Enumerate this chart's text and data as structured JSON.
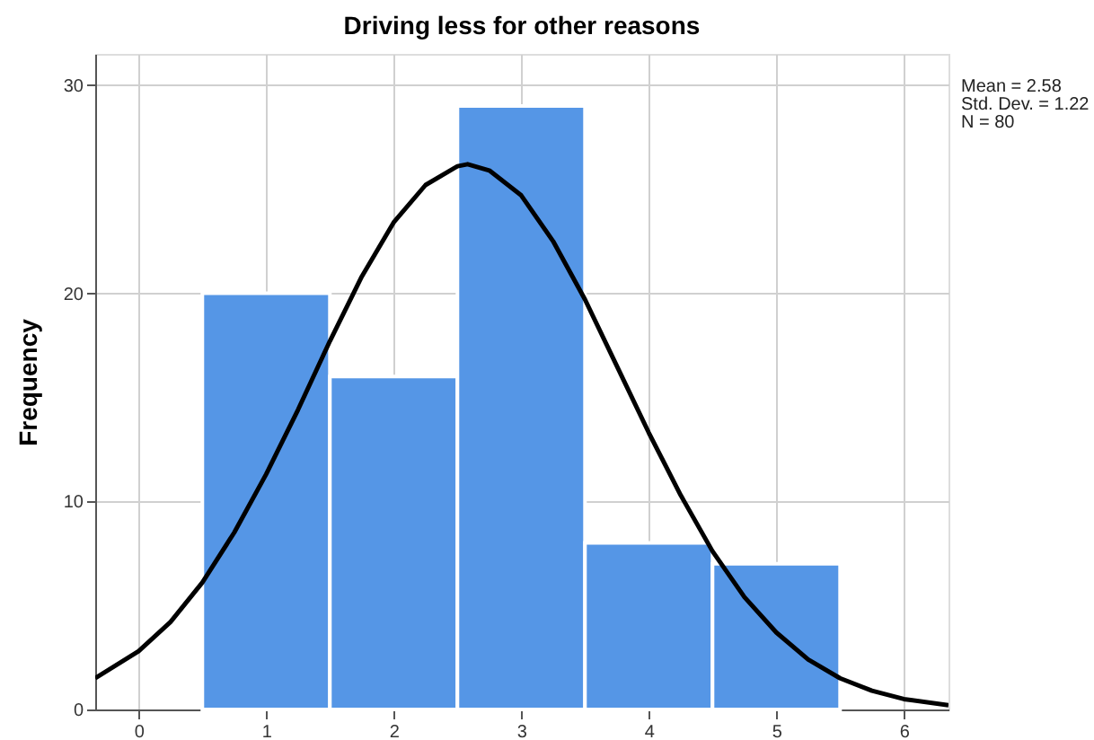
{
  "chart_data": {
    "type": "histogram",
    "title": "Driving less for other reasons",
    "ylabel": "Frequency",
    "bins": [
      0.5,
      1.5,
      2.5,
      3.5,
      4.5,
      5.5
    ],
    "values": [
      20,
      16,
      29,
      8,
      7
    ],
    "color": "#5596e6",
    "series": [
      {
        "type": "line",
        "color": "#000000",
        "x": [
          -0.34,
          0,
          0.25,
          0.5,
          0.75,
          1.0,
          1.25,
          1.5,
          1.75,
          2.0,
          2.25,
          2.5,
          2.58,
          2.75,
          3.0,
          3.25,
          3.5,
          3.75,
          4.0,
          4.25,
          4.5,
          4.75,
          5.0,
          5.25,
          5.5,
          5.75,
          6.0,
          6.35
        ],
        "values": [
          1.5,
          2.8,
          4.2,
          6.1,
          8.5,
          11.3,
          14.4,
          17.7,
          20.8,
          23.4,
          25.2,
          26.1,
          26.2,
          25.9,
          24.7,
          22.5,
          19.7,
          16.5,
          13.3,
          10.3,
          7.6,
          5.4,
          3.7,
          2.4,
          1.5,
          0.9,
          0.5,
          0.2
        ]
      }
    ],
    "xlim": [
      -0.34,
      6.35
    ],
    "xticks": [
      0,
      1,
      2,
      3,
      4,
      5,
      6
    ],
    "ylim": [
      0,
      31.5
    ],
    "yticks": [
      0,
      10,
      20,
      30
    ],
    "grid": true,
    "annotations": [
      "Mean = 2.58",
      "Std. Dev. = 1.22",
      "N = 80"
    ]
  }
}
